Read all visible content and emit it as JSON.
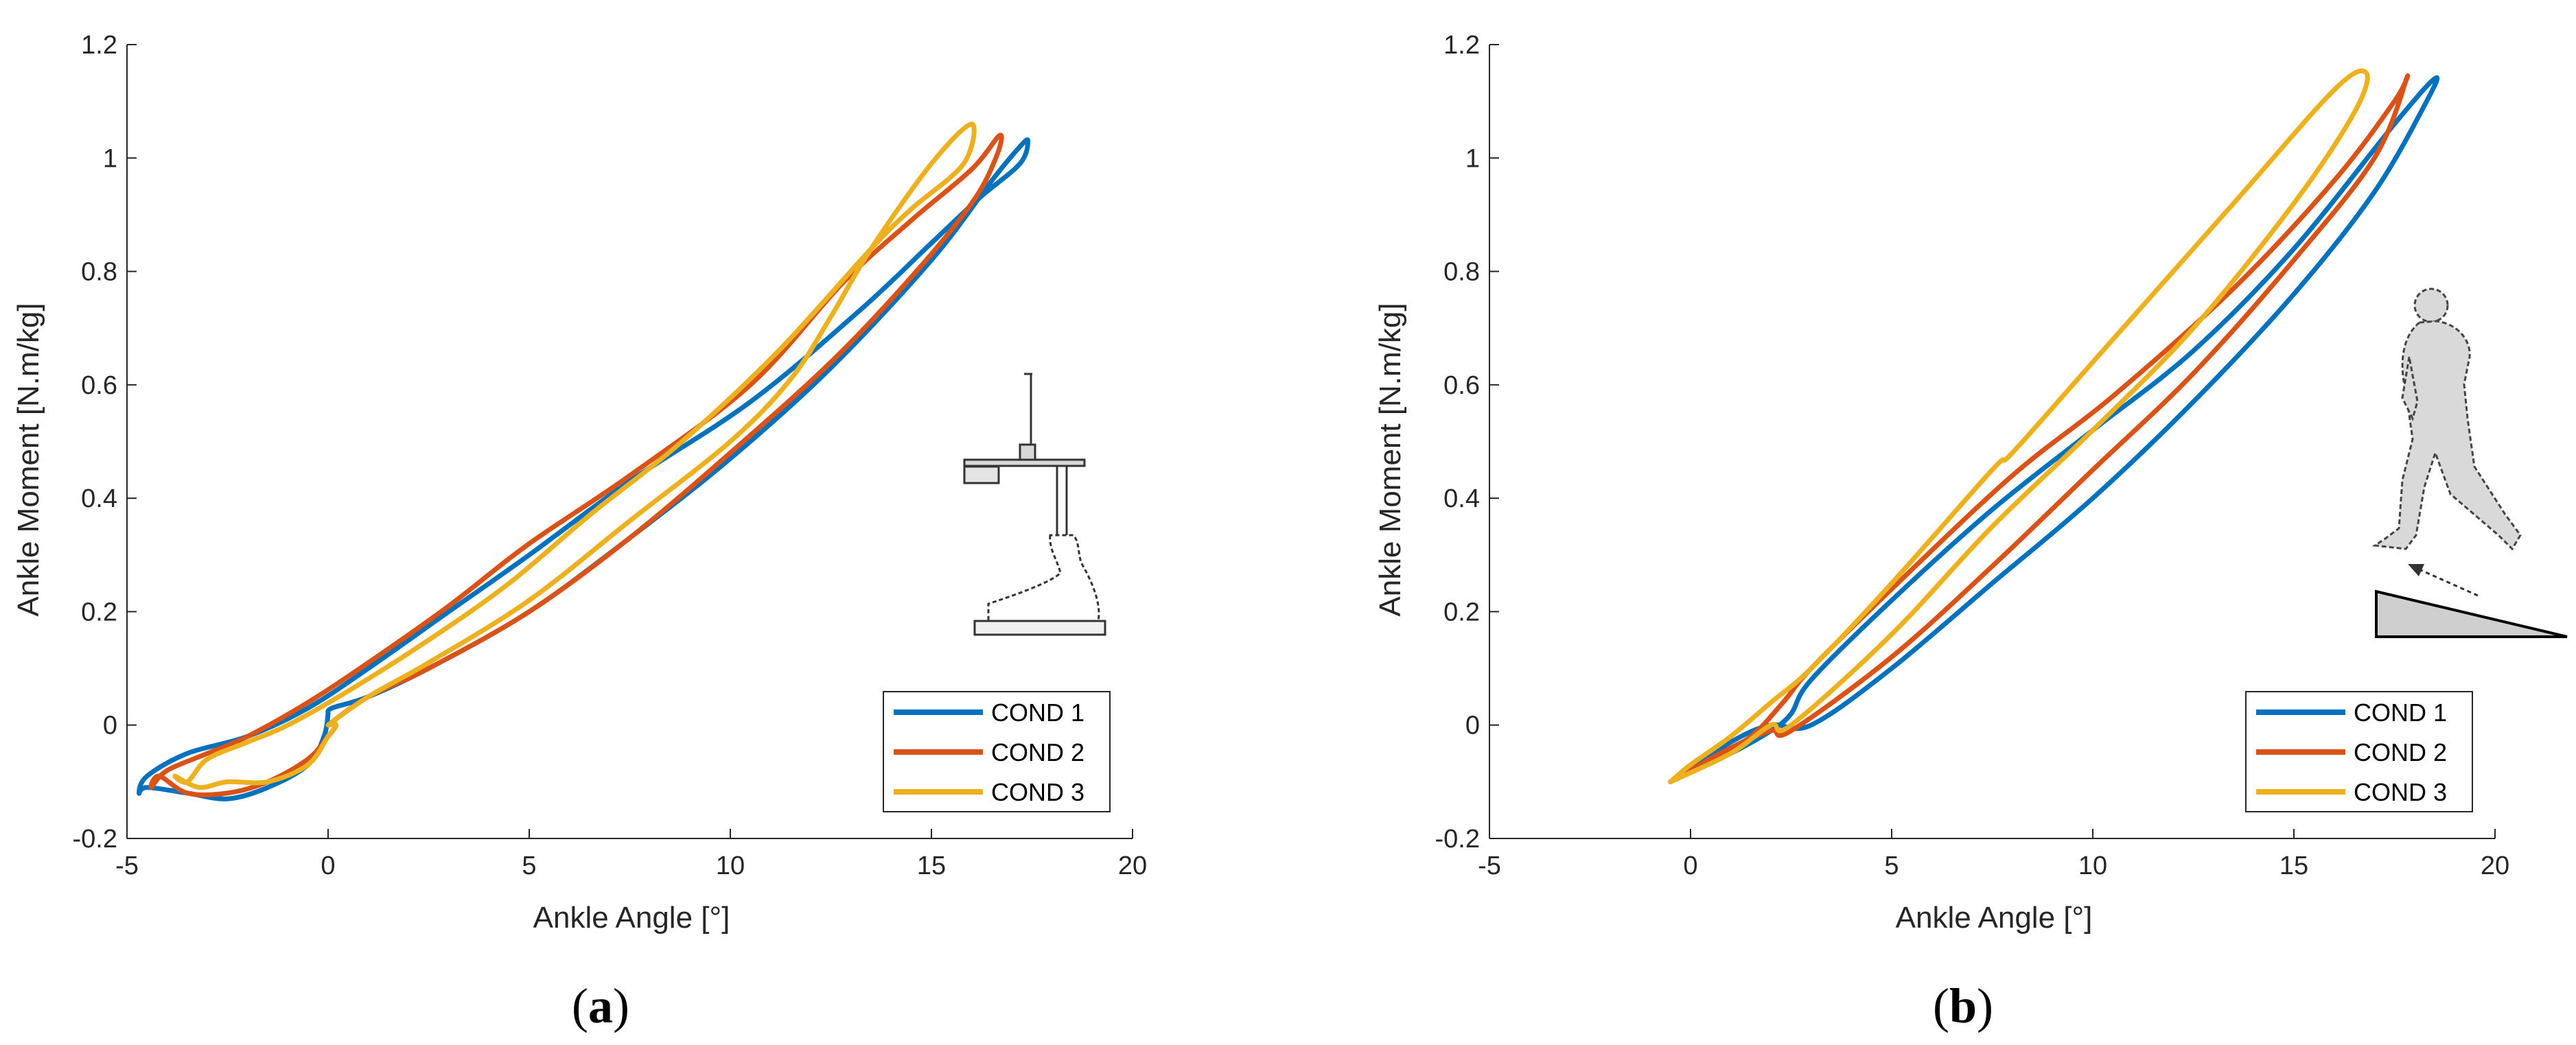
{
  "colors": {
    "cond1": "#0072BD",
    "cond2": "#D95319",
    "cond3": "#EDB120",
    "axis": "#262626"
  },
  "chart_data": [
    {
      "panel": "(a)",
      "caption_letter": "a",
      "type": "line",
      "xlabel": "Ankle Angle [°]",
      "ylabel": "Ankle Moment [N.m/kg]",
      "xlim": [
        -5,
        20
      ],
      "ylim": [
        -0.2,
        1.2
      ],
      "xticks": [
        -5,
        0,
        5,
        10,
        15,
        20
      ],
      "yticks": [
        -0.2,
        0,
        0.2,
        0.4,
        0.6,
        0.8,
        1,
        1.2
      ],
      "xtick_labels": [
        "-5",
        "0",
        "5",
        "10",
        "15",
        "20"
      ],
      "ytick_labels": [
        "-0.2",
        "0",
        "0.2",
        "0.4",
        "0.6",
        "0.8",
        "1",
        "1.2"
      ],
      "grid": false,
      "legend_position": "bottom-right",
      "inset_icon": "prosthetic-foot-test-rig-icon",
      "series": [
        {
          "name": "COND 1",
          "color": "#0072BD",
          "x": [
            0.0,
            0.1,
            1.0,
            2.5,
            5.0,
            7.5,
            10.0,
            12.5,
            15.0,
            16.5,
            17.2,
            17.4,
            17.2,
            16.2,
            15.0,
            13.2,
            10.5,
            7.5,
            5.0,
            3.0,
            1.0,
            -0.5,
            -2.0,
            -3.5,
            -4.5,
            -4.7,
            -4.5,
            -3.5,
            -2.5,
            -1.5,
            -0.5,
            -0.1,
            0.0
          ],
          "y": [
            0.02,
            0.03,
            0.05,
            0.1,
            0.2,
            0.33,
            0.47,
            0.63,
            0.82,
            0.96,
            1.02,
            1.03,
            0.99,
            0.93,
            0.85,
            0.73,
            0.57,
            0.43,
            0.3,
            0.2,
            0.1,
            0.03,
            -0.02,
            -0.05,
            -0.09,
            -0.12,
            -0.11,
            -0.12,
            -0.13,
            -0.11,
            -0.07,
            -0.02,
            0.02
          ]
        },
        {
          "name": "COND 2",
          "color": "#D95319",
          "x": [
            0.0,
            1.0,
            2.5,
            5.0,
            7.5,
            10.0,
            12.5,
            14.5,
            16.0,
            16.6,
            16.7,
            16.0,
            14.5,
            12.8,
            10.5,
            7.5,
            5.0,
            3.0,
            1.0,
            -0.5,
            -2.0,
            -3.0,
            -4.0,
            -4.4,
            -4.2,
            -3.5,
            -2.5,
            -1.5,
            -0.5,
            0.0,
            0.2,
            0.0
          ],
          "y": [
            0.0,
            0.05,
            0.1,
            0.2,
            0.33,
            0.48,
            0.64,
            0.79,
            0.92,
            1.0,
            1.04,
            0.98,
            0.89,
            0.78,
            0.6,
            0.44,
            0.32,
            0.21,
            0.11,
            0.04,
            -0.02,
            -0.05,
            -0.08,
            -0.11,
            -0.09,
            -0.12,
            -0.12,
            -0.1,
            -0.06,
            -0.02,
            0.0,
            0.0
          ]
        },
        {
          "name": "COND 3",
          "color": "#EDB120",
          "x": [
            0.0,
            1.0,
            2.5,
            5.0,
            7.5,
            10.0,
            11.5,
            12.5,
            13.5,
            15.0,
            16.0,
            15.8,
            14.5,
            13.5,
            11.2,
            8.8,
            6.5,
            4.5,
            2.5,
            0.5,
            -1.0,
            -2.0,
            -3.0,
            -3.5,
            -3.8,
            -3.2,
            -2.5,
            -1.5,
            -0.5,
            0.0,
            0.2,
            0.0
          ],
          "y": [
            0.0,
            0.05,
            0.11,
            0.22,
            0.36,
            0.5,
            0.61,
            0.72,
            0.84,
            0.99,
            1.06,
            0.99,
            0.91,
            0.84,
            0.66,
            0.5,
            0.37,
            0.25,
            0.15,
            0.06,
            0.0,
            -0.03,
            -0.06,
            -0.1,
            -0.09,
            -0.11,
            -0.1,
            -0.1,
            -0.07,
            -0.02,
            0.0,
            0.0
          ]
        }
      ]
    },
    {
      "panel": "(b)",
      "caption_letter": "b",
      "type": "line",
      "xlabel": "Ankle Angle [°]",
      "ylabel": "Ankle Moment [N.m/kg]",
      "xlim": [
        -5,
        20
      ],
      "ylim": [
        -0.2,
        1.2
      ],
      "xticks": [
        -5,
        0,
        5,
        10,
        15,
        20
      ],
      "yticks": [
        -0.2,
        0,
        0.2,
        0.4,
        0.6,
        0.8,
        1,
        1.2
      ],
      "xtick_labels": [
        "-5",
        "0",
        "5",
        "10",
        "15",
        "20"
      ],
      "ytick_labels": [
        "-0.2",
        "0",
        "0.2",
        "0.4",
        "0.6",
        "0.8",
        "1",
        "1.2"
      ],
      "grid": false,
      "legend_position": "bottom-right",
      "inset_icon": "walker-on-slope-icon",
      "series": [
        {
          "name": "COND 1",
          "color": "#0072BD",
          "x": [
            -0.5,
            1.0,
            2.0,
            3.0,
            5.0,
            7.5,
            10.0,
            12.5,
            15.0,
            17.0,
            18.3,
            18.5,
            17.5,
            15.0,
            12.5,
            10.0,
            7.5,
            5.0,
            3.0,
            2.5,
            2.0,
            1.0,
            -0.5
          ],
          "y": [
            -0.1,
            -0.03,
            0.0,
            0.0,
            0.1,
            0.25,
            0.4,
            0.57,
            0.76,
            0.94,
            1.1,
            1.14,
            1.06,
            0.84,
            0.66,
            0.52,
            0.38,
            0.22,
            0.08,
            0.02,
            -0.01,
            -0.05,
            -0.1
          ]
        },
        {
          "name": "COND 2",
          "color": "#D95319",
          "x": [
            -0.5,
            1.0,
            2.0,
            2.5,
            5.0,
            7.5,
            10.0,
            12.5,
            15.0,
            17.0,
            17.8,
            17.5,
            16.0,
            13.5,
            10.5,
            8.0,
            5.0,
            3.0,
            2.3,
            1.5,
            0.5,
            -0.5
          ],
          "y": [
            -0.1,
            -0.04,
            -0.01,
            -0.01,
            0.12,
            0.28,
            0.45,
            0.62,
            0.82,
            1.0,
            1.14,
            1.1,
            0.96,
            0.77,
            0.58,
            0.44,
            0.24,
            0.1,
            0.04,
            -0.02,
            -0.06,
            -0.1
          ]
        },
        {
          "name": "COND 3",
          "color": "#EDB120",
          "x": [
            -0.5,
            1.0,
            2.0,
            2.5,
            5.0,
            7.5,
            10.0,
            12.5,
            15.0,
            16.5,
            16.8,
            16.0,
            13.5,
            10.0,
            8.0,
            7.5,
            5.0,
            3.0,
            2.0,
            1.0,
            0.0,
            -0.5
          ],
          "y": [
            -0.1,
            -0.05,
            0.0,
            0.0,
            0.16,
            0.35,
            0.52,
            0.7,
            0.92,
            1.08,
            1.15,
            1.12,
            0.92,
            0.64,
            0.48,
            0.45,
            0.25,
            0.1,
            0.04,
            -0.02,
            -0.07,
            -0.1
          ]
        }
      ]
    }
  ]
}
